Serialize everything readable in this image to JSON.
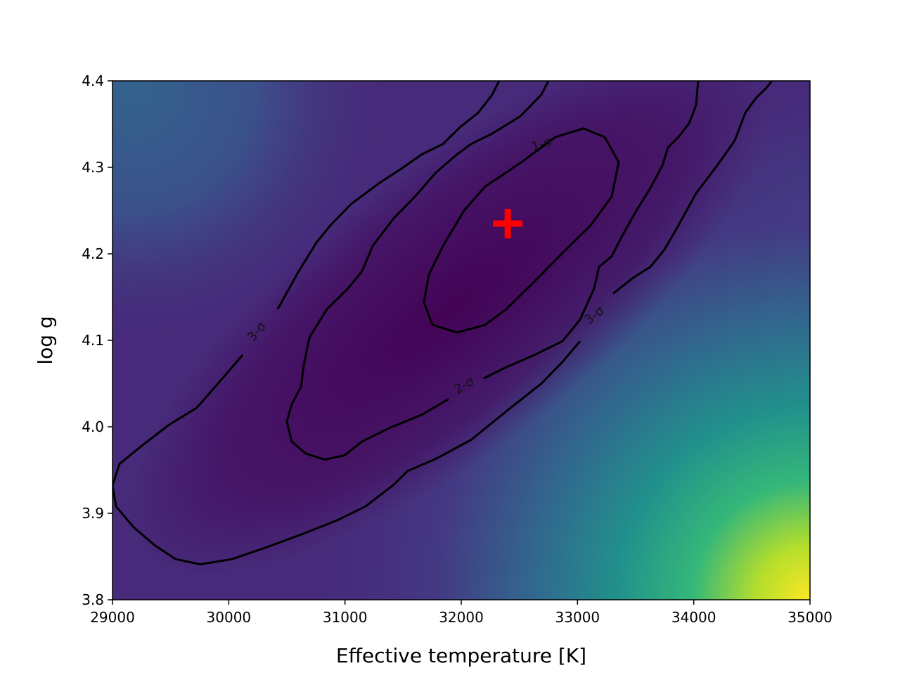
{
  "chart_data": {
    "type": "contour",
    "xlabel": "Effective temperature [K]",
    "ylabel": "log g",
    "xlim": [
      29000,
      35000
    ],
    "ylim": [
      3.8,
      4.4
    ],
    "xticks": [
      29000,
      30000,
      31000,
      32000,
      33000,
      34000,
      35000
    ],
    "yticks": [
      3.8,
      3.9,
      {
        "value": 4,
        "label": "4.0"
      },
      4.1,
      4.2,
      4.3,
      4.4
    ],
    "best_fit": {
      "x": 32400,
      "y": 4.235,
      "color": "#ff0000"
    },
    "contour_color": "#000000",
    "contours": [
      {
        "label": "1-σ",
        "label_positions": [
          {
            "x": 32690,
            "y": 4.327
          }
        ],
        "x": [
          32810,
          33052,
          33234,
          33355,
          33294,
          33113,
          32871,
          32629,
          32387,
          32206,
          31964,
          31752,
          31679,
          31722,
          31843,
          32024,
          32206,
          32387,
          32538
        ],
        "y": [
          4.335,
          4.345,
          4.335,
          4.306,
          4.266,
          4.233,
          4.201,
          4.168,
          4.136,
          4.118,
          4.109,
          4.118,
          4.144,
          4.176,
          4.209,
          4.25,
          4.278,
          4.294,
          4.308
        ]
      },
      {
        "label": "2-σ",
        "label_positions": [
          {
            "x": 32024,
            "y": 4.048
          }
        ],
        "x": [
          32750,
          32689,
          32508,
          32266,
          32085,
          31964,
          31782,
          31601,
          31419,
          31238,
          31147,
          31026,
          30845,
          30693,
          30645,
          30621,
          30542,
          30500,
          30542,
          30663,
          30826,
          30996,
          31147,
          31389,
          31661,
          31891,
          null,
          32193,
          32387,
          32629,
          32871,
          33022,
          33143,
          33185,
          33294,
          33385,
          33506,
          33627,
          33730,
          33778,
          33869,
          33960,
          34020,
          34038
        ],
        "y": [
          4.4,
          4.384,
          4.359,
          4.339,
          4.327,
          4.315,
          4.294,
          4.266,
          4.241,
          4.209,
          4.18,
          4.16,
          4.136,
          4.103,
          4.071,
          4.046,
          4.026,
          4.006,
          3.983,
          3.969,
          3.962,
          3.967,
          3.983,
          3.999,
          4.014,
          4.032,
          null,
          4.056,
          4.069,
          4.083,
          4.099,
          4.124,
          4.16,
          4.185,
          4.197,
          4.221,
          4.25,
          4.276,
          4.302,
          4.323,
          4.335,
          4.351,
          4.372,
          4.4
        ]
      },
      {
        "label": "3-σ",
        "label_positions": [
          {
            "x": 30240,
            "y": 4.11
          },
          {
            "x": 33143,
            "y": 4.129
          }
        ],
        "x": [
          32326,
          32266,
          32145,
          31994,
          31843,
          31661,
          31480,
          31298,
          31056,
          30875,
          30754,
          30603,
          30421,
          null,
          30119,
          29907,
          29726,
          29484,
          29242,
          29060,
          29000,
          29030,
          29181,
          29363,
          29544,
          29756,
          30028,
          30331,
          30633,
          30935,
          31177,
          31419,
          31540,
          31782,
          32085,
          32387,
          32689,
          32871,
          33022,
          null,
          33306,
          33476,
          33627,
          33748,
          33869,
          34020,
          34201,
          34353,
          34443,
          34534,
          34625,
          34673
        ],
        "y": [
          4.4,
          4.384,
          4.363,
          4.347,
          4.327,
          4.315,
          4.298,
          4.282,
          4.258,
          4.233,
          4.213,
          4.18,
          4.136,
          null,
          4.083,
          4.05,
          4.022,
          4.002,
          3.977,
          3.957,
          3.932,
          3.908,
          3.884,
          3.863,
          3.847,
          3.841,
          3.847,
          3.861,
          3.876,
          3.892,
          3.908,
          3.933,
          3.949,
          3.963,
          3.985,
          4.018,
          4.05,
          4.075,
          4.099,
          null,
          4.154,
          4.172,
          4.185,
          4.205,
          4.233,
          4.27,
          4.302,
          4.331,
          4.363,
          4.38,
          4.392,
          4.4
        ]
      }
    ]
  }
}
